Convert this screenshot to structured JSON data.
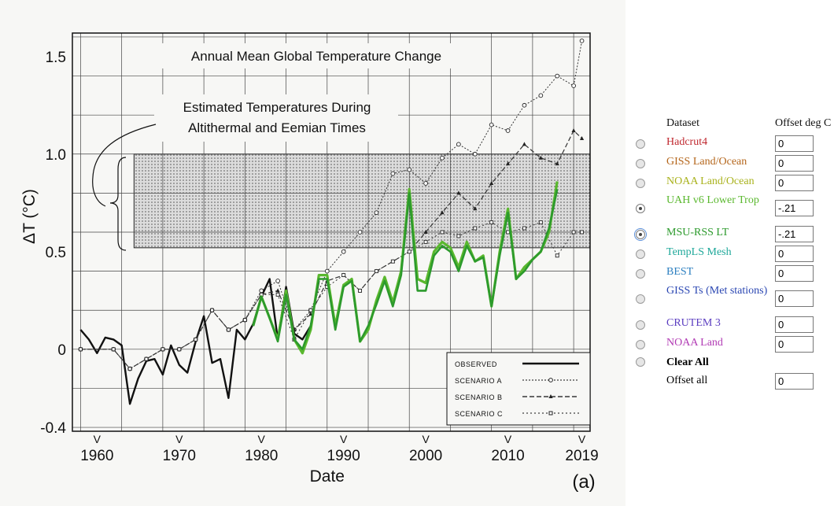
{
  "chart_data": {
    "type": "line",
    "title": "Annual Mean Global Temperature Change",
    "annotation": "Estimated Temperatures During Altithermal and Eemian Times",
    "shaded_band": {
      "y_range": [
        0.52,
        1.0
      ]
    },
    "xlabel": "Date",
    "ylabel": "ΔT (°C)",
    "panel_label": "(a)",
    "xlim": [
      1957,
      2020
    ],
    "ylim": [
      -0.42,
      1.62
    ],
    "x_ticks": [
      "1960",
      "1970",
      "1980",
      "1990",
      "2000",
      "2010",
      "2019"
    ],
    "y_ticks": [
      "1.5",
      "1.0",
      "0.5",
      "0",
      "-0.4"
    ],
    "grid": true,
    "legend_position": "bottom-right",
    "legend": [
      "OBSERVED",
      "SCENARIO A",
      "SCENARIO B",
      "SCENARIO C"
    ],
    "series": [
      {
        "name": "OBSERVED",
        "color": "#111111",
        "x": [
          1958,
          1959,
          1960,
          1961,
          1962,
          1963,
          1964,
          1965,
          1966,
          1967,
          1968,
          1969,
          1970,
          1971,
          1972,
          1973,
          1974,
          1975,
          1976,
          1977,
          1978,
          1979,
          1980,
          1981,
          1982,
          1983,
          1984,
          1985,
          1986,
          1987
        ],
        "y": [
          0.1,
          0.05,
          -0.02,
          0.06,
          0.05,
          0.02,
          -0.28,
          -0.15,
          -0.06,
          -0.05,
          -0.13,
          0.02,
          -0.08,
          -0.12,
          0.04,
          0.17,
          -0.07,
          -0.05,
          -0.25,
          0.1,
          0.05,
          0.13,
          0.27,
          0.36,
          0.05,
          0.32,
          0.08,
          0.05,
          0.12,
          0.35
        ]
      },
      {
        "name": "SCENARIO A",
        "color": "#333333",
        "x": [
          1958,
          1962,
          1964,
          1966,
          1968,
          1970,
          1972,
          1974,
          1976,
          1978,
          1980,
          1982,
          1984,
          1986,
          1988,
          1990,
          1992,
          1994,
          1996,
          1998,
          2000,
          2002,
          2004,
          2006,
          2008,
          2010,
          2012,
          2014,
          2016,
          2018,
          2019
        ],
        "y": [
          0.0,
          0.0,
          -0.1,
          -0.05,
          0.0,
          0.0,
          0.05,
          0.2,
          0.1,
          0.15,
          0.3,
          0.35,
          0.1,
          0.2,
          0.4,
          0.5,
          0.6,
          0.7,
          0.9,
          0.92,
          0.85,
          0.98,
          1.05,
          1.0,
          1.15,
          1.12,
          1.25,
          1.3,
          1.4,
          1.35,
          1.58
        ]
      },
      {
        "name": "SCENARIO B",
        "color": "#333333",
        "x": [
          1958,
          1962,
          1964,
          1966,
          1968,
          1970,
          1972,
          1974,
          1976,
          1978,
          1980,
          1982,
          1984,
          1986,
          1988,
          1990,
          1992,
          1994,
          1996,
          1998,
          2000,
          2002,
          2004,
          2006,
          2008,
          2010,
          2012,
          2014,
          2016,
          2018,
          2019
        ],
        "y": [
          0.0,
          0.0,
          -0.1,
          -0.05,
          0.0,
          0.0,
          0.05,
          0.2,
          0.1,
          0.15,
          0.28,
          0.3,
          0.1,
          0.18,
          0.35,
          0.38,
          0.3,
          0.4,
          0.45,
          0.5,
          0.6,
          0.7,
          0.8,
          0.72,
          0.85,
          0.95,
          1.05,
          0.98,
          0.95,
          1.12,
          1.08
        ]
      },
      {
        "name": "SCENARIO C",
        "color": "#333333",
        "x": [
          1958,
          1962,
          1964,
          1966,
          1968,
          1970,
          1972,
          1974,
          1976,
          1978,
          1980,
          1982,
          1984,
          1986,
          1988,
          1990,
          1992,
          1994,
          1996,
          1998,
          2000,
          2002,
          2004,
          2006,
          2008,
          2010,
          2012,
          2014,
          2016,
          2018,
          2019
        ],
        "y": [
          0.0,
          0.0,
          -0.1,
          -0.05,
          0.0,
          0.0,
          0.05,
          0.2,
          0.1,
          0.15,
          0.28,
          0.28,
          0.05,
          0.2,
          0.32,
          0.38,
          0.3,
          0.4,
          0.45,
          0.5,
          0.55,
          0.6,
          0.58,
          0.62,
          0.65,
          0.6,
          0.62,
          0.65,
          0.48,
          0.6,
          0.6
        ]
      },
      {
        "name": "UAH v6 Lower Trop",
        "color": "#5ab82e",
        "x": [
          1979,
          1980,
          1981,
          1982,
          1983,
          1984,
          1985,
          1986,
          1987,
          1988,
          1989,
          1990,
          1991,
          1992,
          1993,
          1994,
          1995,
          1996,
          1997,
          1998,
          1999,
          2000,
          2001,
          2002,
          2003,
          2004,
          2005,
          2006,
          2007,
          2008,
          2009,
          2010,
          2011,
          2012,
          2013,
          2014,
          2015,
          2016
        ],
        "y": [
          0.12,
          0.27,
          0.16,
          0.05,
          0.3,
          0.05,
          -0.02,
          0.1,
          0.38,
          0.38,
          0.12,
          0.33,
          0.36,
          0.04,
          0.1,
          0.25,
          0.37,
          0.24,
          0.4,
          0.82,
          0.36,
          0.34,
          0.5,
          0.55,
          0.52,
          0.42,
          0.55,
          0.45,
          0.48,
          0.22,
          0.5,
          0.72,
          0.36,
          0.42,
          0.46,
          0.5,
          0.6,
          0.86
        ]
      },
      {
        "name": "MSU-RSS LT",
        "color": "#2c9a2c",
        "x": [
          1979,
          1980,
          1981,
          1982,
          1983,
          1984,
          1985,
          1986,
          1987,
          1988,
          1989,
          1990,
          1991,
          1992,
          1993,
          1994,
          1995,
          1996,
          1997,
          1998,
          1999,
          2000,
          2001,
          2002,
          2003,
          2004,
          2005,
          2006,
          2007,
          2008,
          2009,
          2010,
          2011,
          2012,
          2013,
          2014,
          2015,
          2016
        ],
        "y": [
          0.12,
          0.27,
          0.16,
          0.04,
          0.28,
          0.05,
          0.0,
          0.12,
          0.36,
          0.36,
          0.1,
          0.32,
          0.35,
          0.04,
          0.12,
          0.23,
          0.35,
          0.22,
          0.38,
          0.8,
          0.3,
          0.3,
          0.48,
          0.53,
          0.5,
          0.4,
          0.53,
          0.45,
          0.47,
          0.22,
          0.48,
          0.7,
          0.36,
          0.4,
          0.46,
          0.5,
          0.62,
          0.82
        ]
      }
    ]
  },
  "panel": {
    "dataset_header": "Dataset",
    "offset_header": "Offset deg C",
    "rows": [
      {
        "label": "Hadcrut4",
        "color": "#c0282f",
        "offset": "0",
        "selected": false
      },
      {
        "label": "GISS Land/Ocean",
        "color": "#b4651a",
        "offset": "0",
        "selected": false
      },
      {
        "label": "NOAA Land/Ocean",
        "color": "#a9b21c",
        "offset": "0",
        "selected": false
      },
      {
        "label": "UAH v6 Lower Trop",
        "color": "#5ab82e",
        "offset": "-.21",
        "selected": true
      },
      {
        "label": "MSU-RSS LT",
        "color": "#2c9a2c",
        "offset": "-.21",
        "selected": true
      },
      {
        "label": "TempLS Mesh",
        "color": "#1fa89a",
        "offset": "0",
        "selected": false
      },
      {
        "label": "BEST",
        "color": "#2c7fc0",
        "offset": "0",
        "selected": false
      },
      {
        "label": "GISS Ts (Met stations)",
        "color": "#2a46b2",
        "offset": "0",
        "selected": false
      },
      {
        "label": "CRUTEM 3",
        "color": "#5a3cc0",
        "offset": "0",
        "selected": false
      },
      {
        "label": "NOAA Land",
        "color": "#b13ab4",
        "offset": "0",
        "selected": false
      }
    ],
    "clear_all_label": "Clear All",
    "offset_all_label": "Offset all",
    "offset_all_value": "0"
  }
}
